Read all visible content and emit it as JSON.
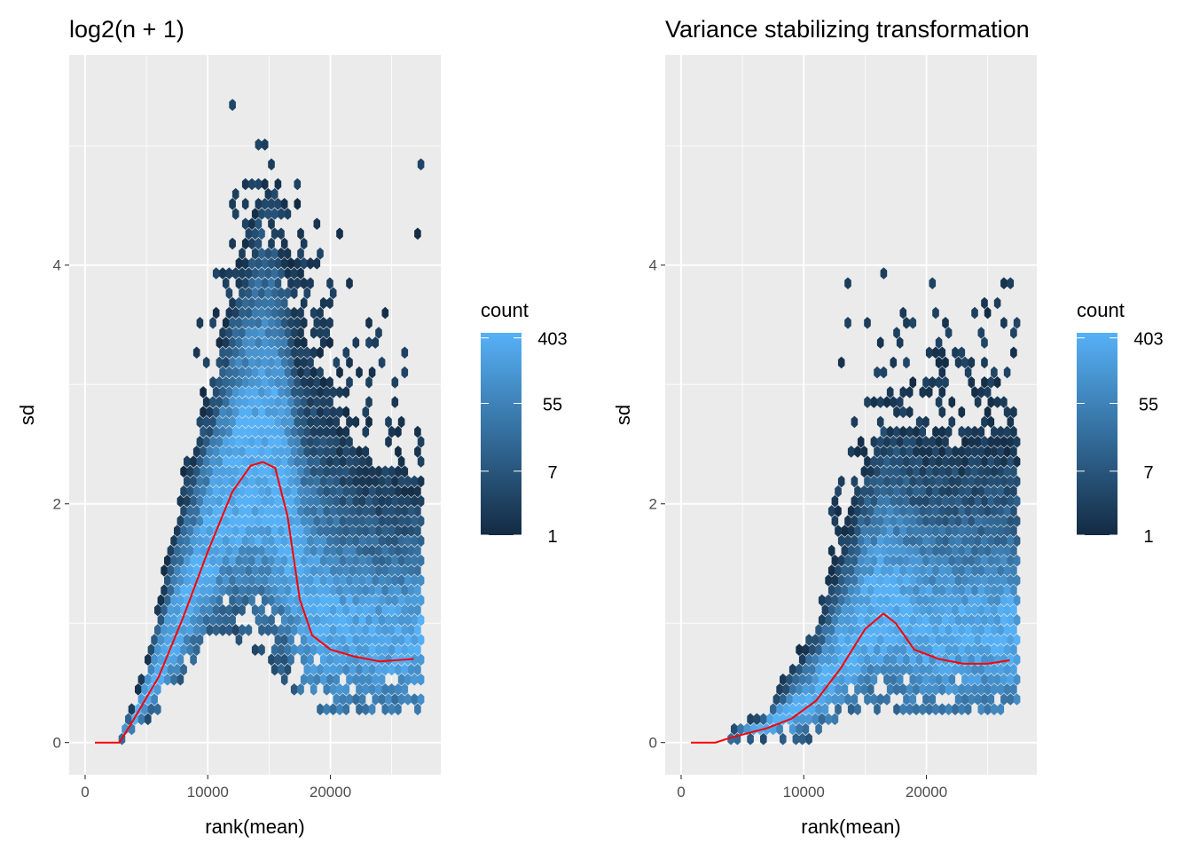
{
  "chart_data": [
    {
      "type": "heatmap",
      "subtype": "hexbin",
      "title": "log2(n + 1)",
      "xlabel": "rank(mean)",
      "ylabel": "sd",
      "xlim": [
        -1300,
        29000
      ],
      "ylim": [
        -0.27,
        5.76
      ],
      "xticks": [
        0,
        10000,
        20000
      ],
      "xtick_labels": [
        "0",
        "10000",
        "20000"
      ],
      "yticks": [
        0,
        2,
        4
      ],
      "ytick_labels": [
        "0",
        "2",
        "4"
      ],
      "grid": true,
      "legend": {
        "title": "count",
        "position": "right",
        "ticks": [
          403,
          55,
          7,
          1
        ],
        "tick_labels": [
          "403",
          "55",
          "7",
          "1"
        ],
        "low_color": "#132B43",
        "high_color": "#56B1F7",
        "max": 470
      },
      "envelope_lower": [
        [
          3000,
          0.05
        ],
        [
          5000,
          0.2
        ],
        [
          8000,
          0.6
        ],
        [
          10000,
          0.85
        ],
        [
          11000,
          0.95
        ],
        [
          12500,
          0.9
        ],
        [
          14000,
          0.75
        ],
        [
          16000,
          0.55
        ],
        [
          18000,
          0.4
        ],
        [
          19000,
          0.3
        ],
        [
          27500,
          0.3
        ]
      ],
      "envelope_upper": [
        [
          3000,
          0.1
        ],
        [
          5000,
          0.65
        ],
        [
          6500,
          1.5
        ],
        [
          8000,
          2.3
        ],
        [
          10000,
          3.0
        ],
        [
          12000,
          3.9
        ],
        [
          14000,
          4.6
        ],
        [
          15500,
          4.6
        ],
        [
          17500,
          3.8
        ],
        [
          20000,
          3.3
        ],
        [
          22000,
          2.8
        ],
        [
          27500,
          2.5
        ]
      ],
      "outlier_max_sd": 5.4,
      "trend_color": "#FF0000",
      "trend": [
        [
          800,
          0
        ],
        [
          2800,
          0
        ],
        [
          4000,
          0.2
        ],
        [
          6000,
          0.55
        ],
        [
          8000,
          1.05
        ],
        [
          10000,
          1.6
        ],
        [
          12000,
          2.1
        ],
        [
          13500,
          2.32
        ],
        [
          14500,
          2.35
        ],
        [
          15500,
          2.3
        ],
        [
          16500,
          1.9
        ],
        [
          17500,
          1.2
        ],
        [
          18500,
          0.9
        ],
        [
          20000,
          0.78
        ],
        [
          22000,
          0.72
        ],
        [
          24000,
          0.68
        ],
        [
          26800,
          0.7
        ]
      ]
    },
    {
      "type": "heatmap",
      "subtype": "hexbin",
      "title": "Variance stabilizing transformation",
      "xlabel": "rank(mean)",
      "ylabel": "sd",
      "xlim": [
        -1300,
        29000
      ],
      "ylim": [
        -0.27,
        5.76
      ],
      "xticks": [
        0,
        10000,
        20000
      ],
      "xtick_labels": [
        "0",
        "10000",
        "20000"
      ],
      "yticks": [
        0,
        2,
        4
      ],
      "ytick_labels": [
        "0",
        "2",
        "4"
      ],
      "grid": true,
      "legend": {
        "title": "count",
        "position": "right",
        "ticks": [
          403,
          55,
          7,
          1
        ],
        "tick_labels": [
          "403",
          "55",
          "7",
          "1"
        ],
        "low_color": "#132B43",
        "high_color": "#56B1F7",
        "max": 470
      },
      "envelope_lower": [
        [
          4000,
          0.05
        ],
        [
          10000,
          0.05
        ],
        [
          11500,
          0.15
        ],
        [
          14000,
          0.25
        ],
        [
          27500,
          0.25
        ]
      ],
      "envelope_upper": [
        [
          4000,
          0.1
        ],
        [
          7000,
          0.3
        ],
        [
          9000,
          0.7
        ],
        [
          11000,
          1.1
        ],
        [
          13000,
          1.8
        ],
        [
          15000,
          2.5
        ],
        [
          17000,
          3.0
        ],
        [
          27500,
          3.0
        ]
      ],
      "outlier_max_sd": 4.0,
      "trend_color": "#FF0000",
      "trend": [
        [
          800,
          0
        ],
        [
          2800,
          0
        ],
        [
          4000,
          0.04
        ],
        [
          7000,
          0.12
        ],
        [
          9000,
          0.2
        ],
        [
          11000,
          0.35
        ],
        [
          13000,
          0.62
        ],
        [
          15000,
          0.95
        ],
        [
          16500,
          1.08
        ],
        [
          17500,
          1.0
        ],
        [
          19000,
          0.78
        ],
        [
          21000,
          0.7
        ],
        [
          23000,
          0.66
        ],
        [
          25000,
          0.66
        ],
        [
          26800,
          0.69
        ]
      ]
    }
  ]
}
